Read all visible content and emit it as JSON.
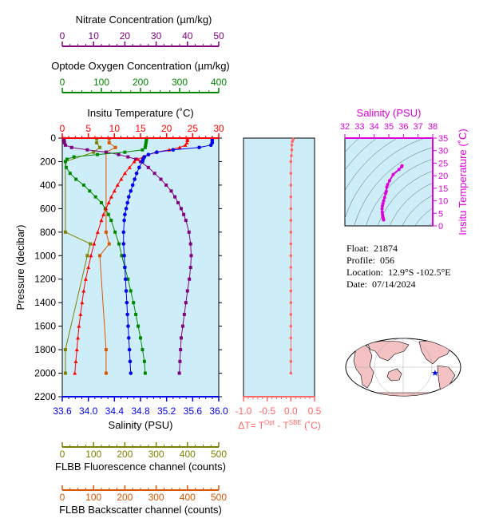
{
  "colors": {
    "salinity": "#0000ee",
    "temperature": "#ff0000",
    "oxygen": "#008800",
    "nitrate": "#800080",
    "fluorescence": "#808000",
    "backscatter": "#dd5500",
    "density_axis": "#dd00dd",
    "panel_bg": "#cdeef8",
    "delta": "#ff6666"
  },
  "float_info": {
    "float_label": "Float:",
    "float_value": "21874",
    "profile_label": "Profile:",
    "profile_value": "056",
    "location_label": "Location:",
    "location_value": "12.9°S  -102.5°E",
    "date_label": "Date:",
    "date_value": "07/14/2024"
  },
  "chart_data": [
    {
      "type": "line",
      "name": "main-profile",
      "pressure_axis": {
        "label": "Pressure (decibar)",
        "lim": [
          0,
          2200
        ],
        "ticks": [
          0,
          200,
          400,
          600,
          800,
          1000,
          1200,
          1400,
          1600,
          1800,
          2000,
          2200
        ],
        "inverted": true
      },
      "axes": {
        "salinity": {
          "label": "Salinity (PSU)",
          "lim": [
            33.6,
            36.0
          ],
          "ticks": [
            "33.6",
            "34.0",
            "34.4",
            "34.8",
            "35.2",
            "35.6",
            "36.0"
          ]
        },
        "temperature": {
          "label": "Insitu Temperature (˚C)",
          "lim": [
            0,
            30
          ],
          "ticks": [
            "0",
            "5",
            "10",
            "15",
            "20",
            "25",
            "30"
          ]
        },
        "oxygen": {
          "label": "Optode Oxygen Concentration (µm/kg)",
          "lim": [
            0,
            400
          ],
          "ticks": [
            "0",
            "100",
            "200",
            "300",
            "400"
          ]
        },
        "nitrate": {
          "label": "Nitrate Concentration (µm/kg)",
          "lim": [
            0,
            50
          ],
          "ticks": [
            "0",
            "10",
            "20",
            "30",
            "40",
            "50"
          ]
        },
        "fluorescence": {
          "label": "FLBB Fluorescence channel (counts)",
          "lim": [
            0,
            500
          ],
          "ticks": [
            "0",
            "100",
            "200",
            "300",
            "400",
            "500"
          ]
        },
        "backscatter": {
          "label": "FLBB Backscatter channel (counts)",
          "lim": [
            0,
            500
          ],
          "ticks": [
            "0",
            "100",
            "200",
            "300",
            "400",
            "500"
          ]
        }
      },
      "pressure": [
        5,
        20,
        40,
        60,
        80,
        100,
        120,
        140,
        160,
        180,
        200,
        250,
        300,
        350,
        400,
        450,
        500,
        550,
        600,
        650,
        700,
        800,
        900,
        1000,
        1100,
        1200,
        1300,
        1400,
        1500,
        1600,
        1700,
        1800,
        1900,
        2000
      ],
      "temperature_values": [
        24.0,
        24.0,
        23.9,
        23.6,
        22.5,
        20.5,
        18.0,
        16.5,
        15.5,
        14.5,
        13.8,
        12.9,
        12.0,
        11.3,
        10.6,
        10.0,
        9.4,
        8.9,
        8.4,
        7.9,
        7.5,
        6.8,
        6.1,
        5.5,
        5.0,
        4.5,
        4.1,
        3.8,
        3.5,
        3.2,
        3.0,
        2.8,
        2.6,
        2.4
      ],
      "salinity_values": [
        35.9,
        35.9,
        35.9,
        35.88,
        35.7,
        35.3,
        35.05,
        34.92,
        34.86,
        34.84,
        34.83,
        34.78,
        34.74,
        34.71,
        34.68,
        34.65,
        34.62,
        34.6,
        34.58,
        34.56,
        34.55,
        34.54,
        34.54,
        34.55,
        34.56,
        34.57,
        34.58,
        34.59,
        34.6,
        34.61,
        34.62,
        34.63,
        34.64,
        34.65
      ],
      "oxygen_values": [
        215,
        215,
        214,
        213,
        212,
        205,
        160,
        90,
        30,
        12,
        8,
        10,
        20,
        35,
        55,
        70,
        85,
        100,
        110,
        118,
        125,
        135,
        145,
        152,
        160,
        168,
        175,
        182,
        188,
        194,
        200,
        205,
        210,
        212
      ],
      "nitrate_values": [
        0.5,
        0.6,
        0.7,
        1.0,
        3.0,
        8.0,
        14.0,
        18.0,
        21.0,
        23.5,
        25.0,
        27.5,
        29.5,
        31.5,
        33.2,
        34.8,
        36.0,
        37.0,
        38.0,
        38.8,
        39.5,
        40.5,
        41.0,
        41.2,
        41.0,
        40.6,
        40.0,
        39.5,
        39.0,
        38.5,
        38.0,
        37.8,
        37.6,
        37.4
      ],
      "fluorescence_p": [
        5,
        40,
        80,
        120,
        200,
        800,
        900,
        1000,
        1800,
        2000
      ],
      "fluorescence_values": [
        110,
        110,
        120,
        100,
        10,
        10,
        90,
        80,
        10,
        10
      ],
      "backscatter_p": [
        5,
        40,
        80,
        120,
        800,
        900,
        1000,
        1800,
        2000
      ],
      "backscatter_values": [
        150,
        150,
        170,
        140,
        140,
        150,
        120,
        140,
        140
      ]
    },
    {
      "type": "scatter",
      "name": "delta-t",
      "xlabel": "ΔT= T^Opt - T^SBE (˚C)",
      "xlabel_parts": {
        "pre": "ΔT= T",
        "sup1": "Opt",
        "mid": " - T",
        "sup2": "SBE",
        "post": " (˚C)"
      },
      "xlim": [
        -1.0,
        0.5
      ],
      "xticks": [
        "-1.0",
        "-0.5",
        "0.0",
        "0.5"
      ],
      "pressure": [
        10,
        30,
        60,
        100,
        150,
        200,
        300,
        400,
        500,
        600,
        700,
        800,
        900,
        1000,
        1100,
        1200,
        1300,
        1400,
        1500,
        1600,
        1700,
        1800,
        1900,
        2000
      ],
      "values": [
        0.05,
        0.03,
        0.02,
        0.02,
        0.01,
        0.0,
        0.0,
        0.0,
        0.0,
        0.0,
        0.0,
        0.0,
        0.0,
        0.0,
        0.0,
        0.0,
        0.0,
        0.0,
        0.0,
        0.0,
        0.0,
        0.0,
        0.0,
        0.0
      ]
    },
    {
      "type": "scatter",
      "name": "ts-diagram",
      "xlabel": "Salinity (PSU)",
      "ylabel": "Insitu Temperature (˚C)",
      "xlim": [
        32,
        38
      ],
      "ylim": [
        0,
        35
      ],
      "xticks": [
        "32",
        "33",
        "34",
        "35",
        "36",
        "37",
        "38"
      ],
      "yticks": [
        "0",
        "5",
        "10",
        "15",
        "20",
        "25",
        "30",
        "35"
      ],
      "salinity": [
        35.9,
        35.88,
        35.7,
        35.3,
        35.05,
        34.92,
        34.86,
        34.83,
        34.78,
        34.71,
        34.65,
        34.6,
        34.56,
        34.54,
        34.55,
        34.57,
        34.59,
        34.61,
        34.63,
        34.65
      ],
      "temperature": [
        24.0,
        23.6,
        22.5,
        20.5,
        18.0,
        16.5,
        15.5,
        13.8,
        12.9,
        11.3,
        10.0,
        8.9,
        7.9,
        6.8,
        5.5,
        4.5,
        3.8,
        3.2,
        2.8,
        2.4
      ]
    }
  ]
}
